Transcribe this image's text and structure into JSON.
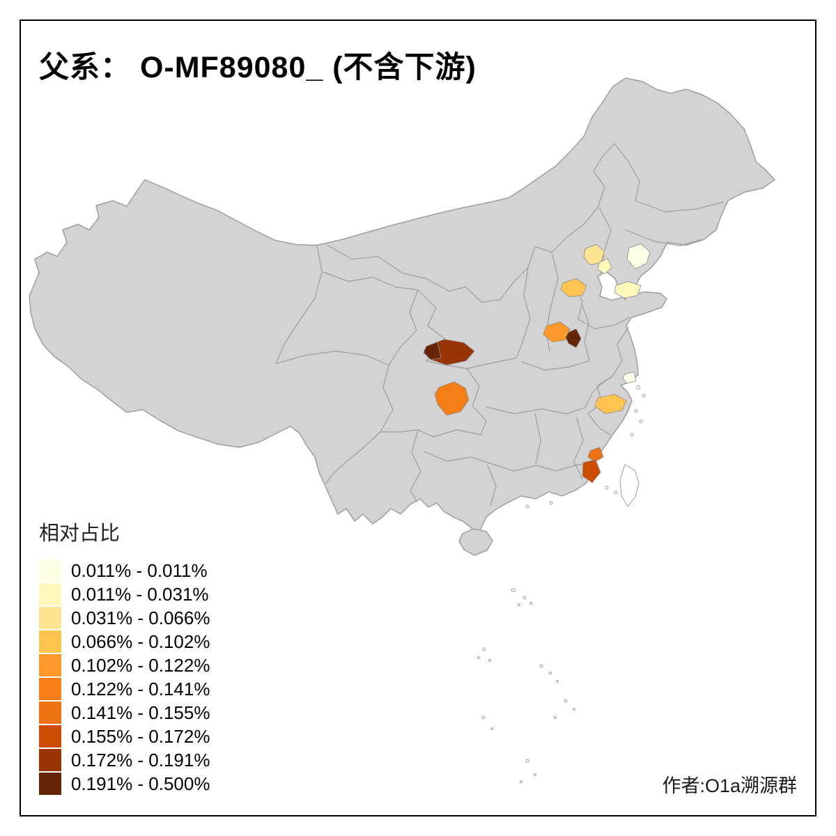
{
  "title": "父系： O-MF89080_ (不含下游)",
  "legend": {
    "title": "相对占比",
    "items": [
      {
        "label": "0.011% - 0.011%",
        "color": "#FFFFE5"
      },
      {
        "label": "0.011% - 0.031%",
        "color": "#FFF7BC"
      },
      {
        "label": "0.031% - 0.066%",
        "color": "#FEE391"
      },
      {
        "label": "0.066% - 0.102%",
        "color": "#FEC44F"
      },
      {
        "label": "0.102% - 0.122%",
        "color": "#FE9929"
      },
      {
        "label": "0.122% - 0.141%",
        "color": "#F57D15"
      },
      {
        "label": "0.141% - 0.155%",
        "color": "#EC7014"
      },
      {
        "label": "0.155% - 0.172%",
        "color": "#CC4C02"
      },
      {
        "label": "0.172% - 0.191%",
        "color": "#993404"
      },
      {
        "label": "0.191% - 0.500%",
        "color": "#662506"
      }
    ]
  },
  "attribution": "作者:O1a溯源群",
  "map": {
    "base_fill": "#d3d3d3",
    "border_color": "#9e9e9e",
    "sea_fill": "#ffffff",
    "regions": [
      {
        "name": "beijing-area",
        "color": "#FEE391"
      },
      {
        "name": "tianjin-area",
        "color": "#FFF7BC"
      },
      {
        "name": "liaoning-coast",
        "color": "#FFFFE5"
      },
      {
        "name": "east-shandong",
        "color": "#FFF7BC"
      },
      {
        "name": "west-shandong",
        "color": "#FEC44F"
      },
      {
        "name": "north-henan",
        "color": "#FE9929"
      },
      {
        "name": "central-henan-dark",
        "color": "#662506"
      },
      {
        "name": "south-shaanxi",
        "color": "#993404"
      },
      {
        "name": "south-shaanxi-dark",
        "color": "#662506"
      },
      {
        "name": "chengdu",
        "color": "#F57D15"
      },
      {
        "name": "shanghai-area",
        "color": "#FFFFE5"
      },
      {
        "name": "north-zhejiang",
        "color": "#FEC44F"
      },
      {
        "name": "north-fujian-coast",
        "color": "#EC7014"
      },
      {
        "name": "south-fujian-coast",
        "color": "#CC4C02"
      }
    ]
  }
}
